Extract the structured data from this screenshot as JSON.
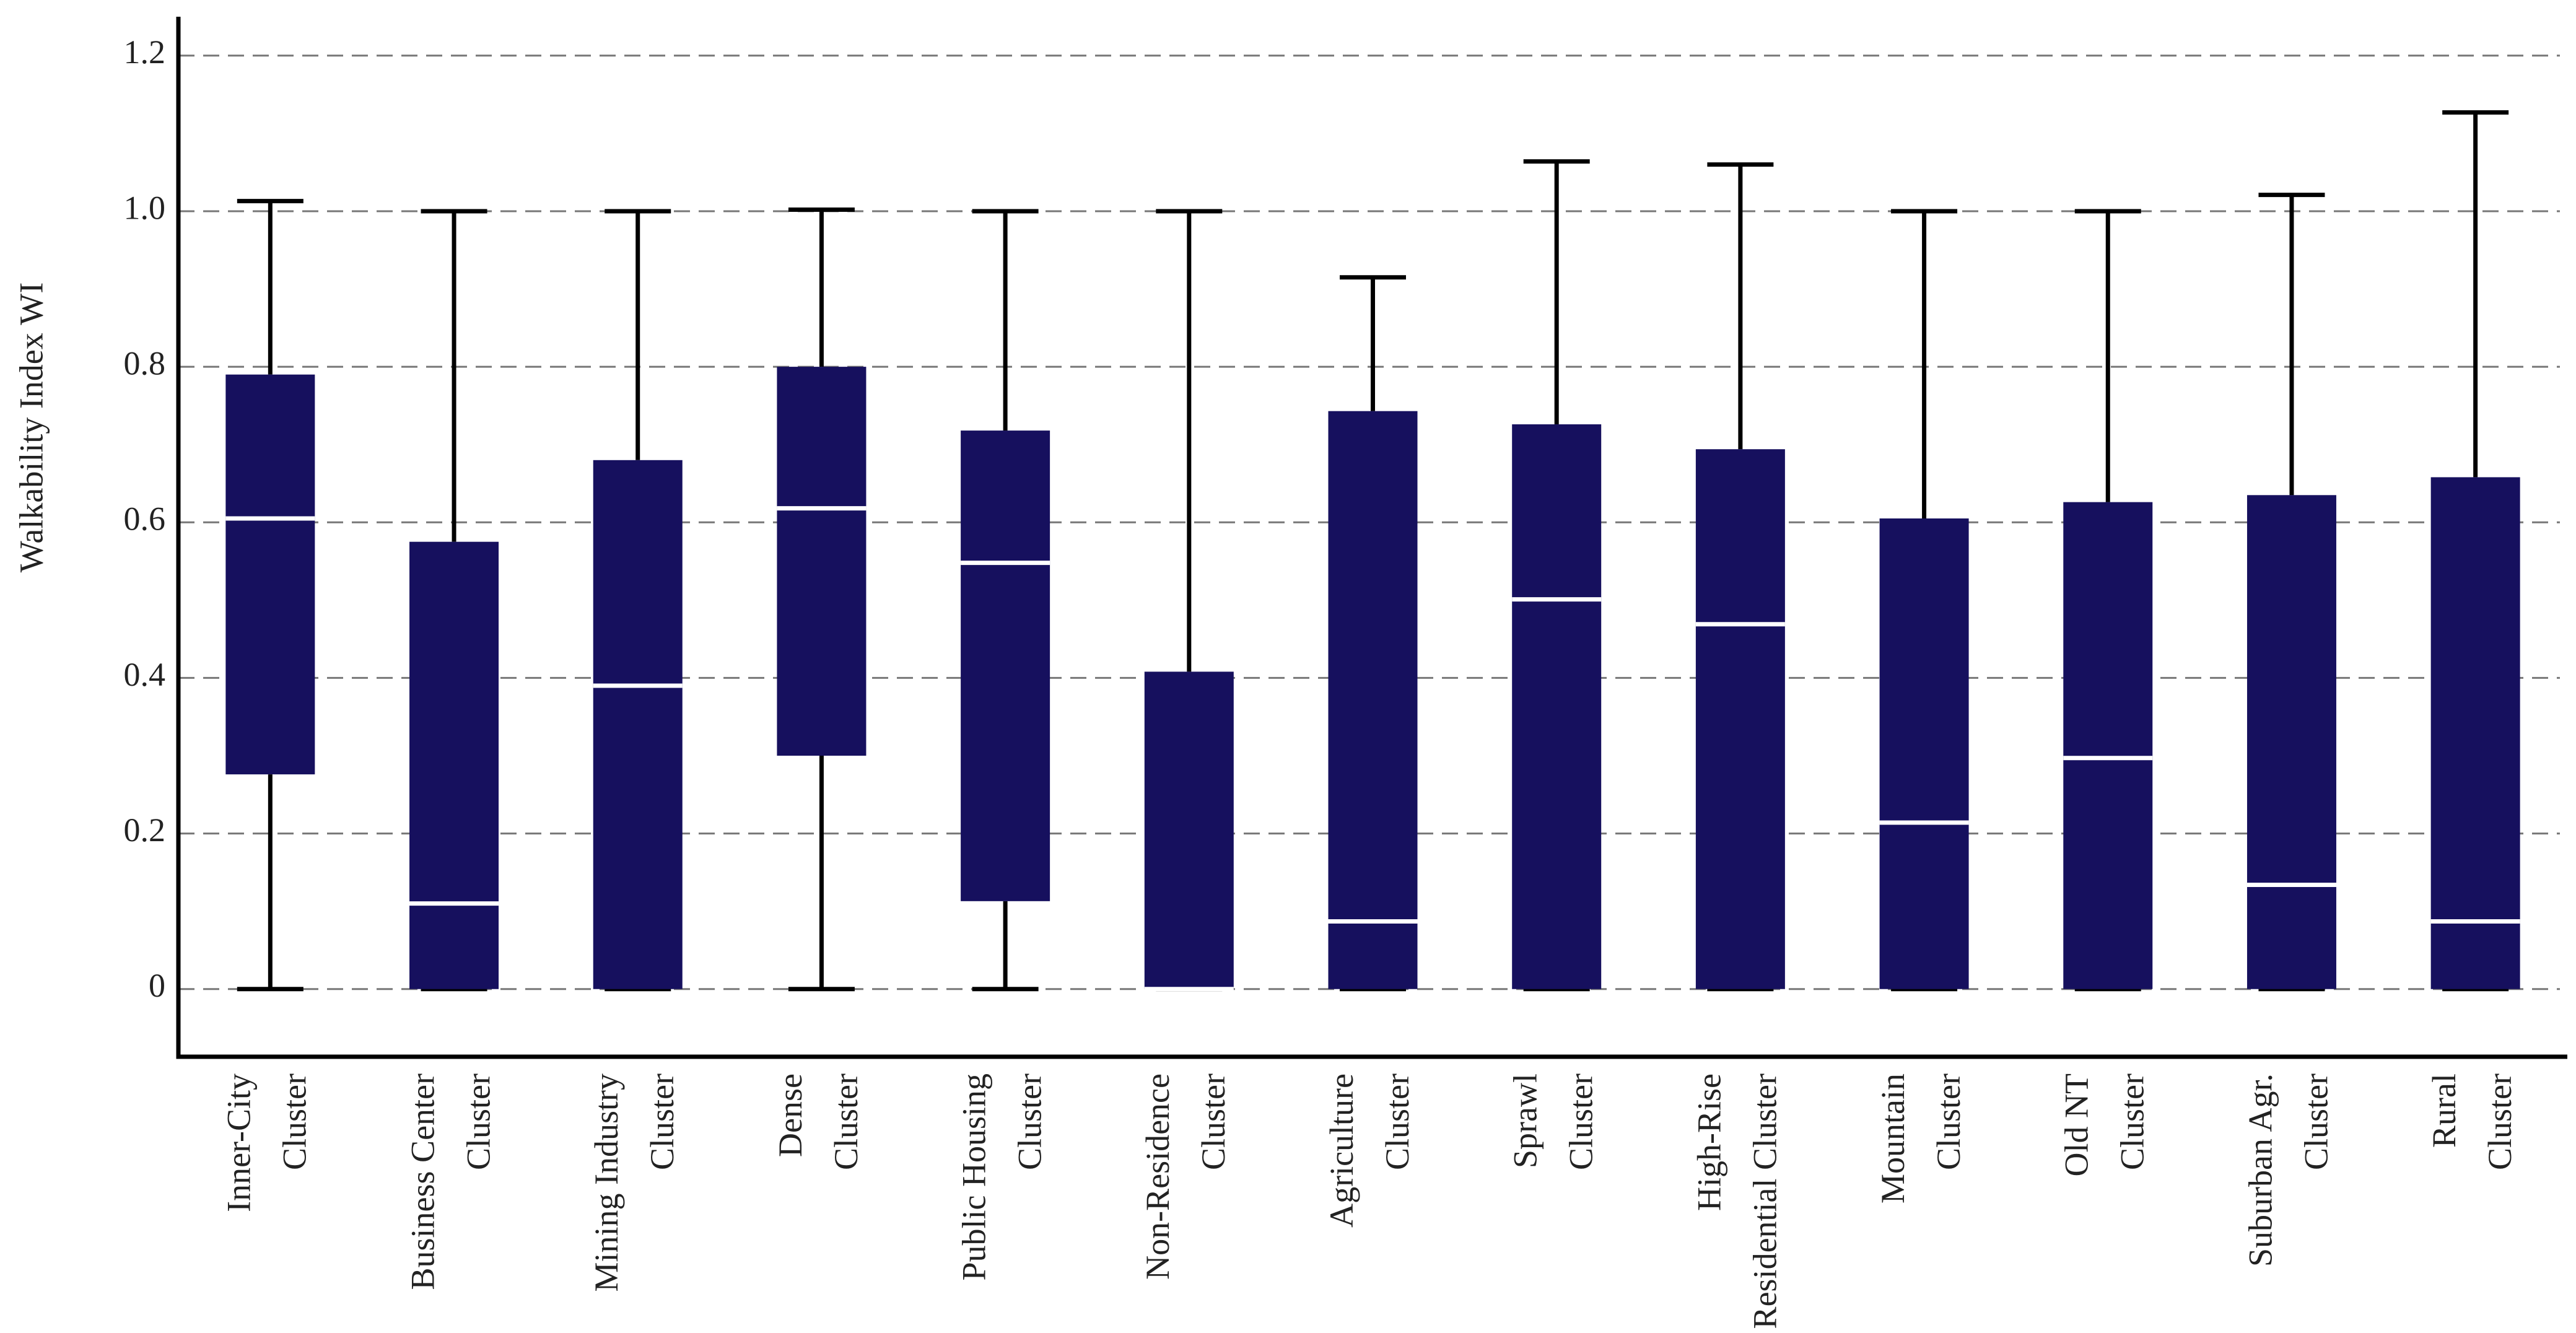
{
  "chart_data": {
    "type": "box",
    "y_label": "Walkability Index WI",
    "categories": [
      [
        "Inner-City",
        "Cluster"
      ],
      [
        "Business Center",
        "Cluster"
      ],
      [
        "Mining Industry",
        "Cluster"
      ],
      [
        "Dense",
        "Cluster"
      ],
      [
        "Public Housing",
        "Cluster"
      ],
      [
        "Non-Residence",
        "Cluster"
      ],
      [
        "Agriculture",
        "Cluster"
      ],
      [
        "Sprawl",
        "Cluster"
      ],
      [
        "High-Rise",
        "Residential Cluster"
      ],
      [
        "Mountain",
        "Cluster"
      ],
      [
        "Old NT",
        "Cluster"
      ],
      [
        "Suburban Agr.",
        "Cluster"
      ],
      [
        "Rural",
        "Cluster"
      ]
    ],
    "low": [
      0,
      0,
      0,
      0,
      0,
      0,
      0,
      0,
      0,
      0,
      0,
      0,
      0
    ],
    "q1": [
      0.276,
      0,
      0,
      0.3,
      0.113,
      0,
      0,
      0,
      0,
      0,
      0,
      0,
      0
    ],
    "median": [
      0.605,
      0.11,
      0.39,
      0.618,
      0.548,
      0,
      0.087,
      0.501,
      0.469,
      0.214,
      0.297,
      0.134,
      0.087
    ],
    "q3": [
      0.79,
      0.575,
      0.68,
      0.8,
      0.718,
      0.408,
      0.743,
      0.726,
      0.694,
      0.605,
      0.626,
      0.635,
      0.658
    ],
    "high": [
      1.013,
      1,
      1,
      1.002,
      1,
      1,
      0.915,
      1.064,
      1.06,
      1,
      1,
      1.021,
      1.127
    ],
    "color": "#16105e",
    "median_color": "#ffffff",
    "ylim": [
      -0.087,
      1.25
    ],
    "yticks": [
      0,
      0.2,
      0.4,
      0.6,
      0.8,
      {
        "value": 1,
        "label": "1.0"
      },
      1.2
    ],
    "grid": true
  }
}
